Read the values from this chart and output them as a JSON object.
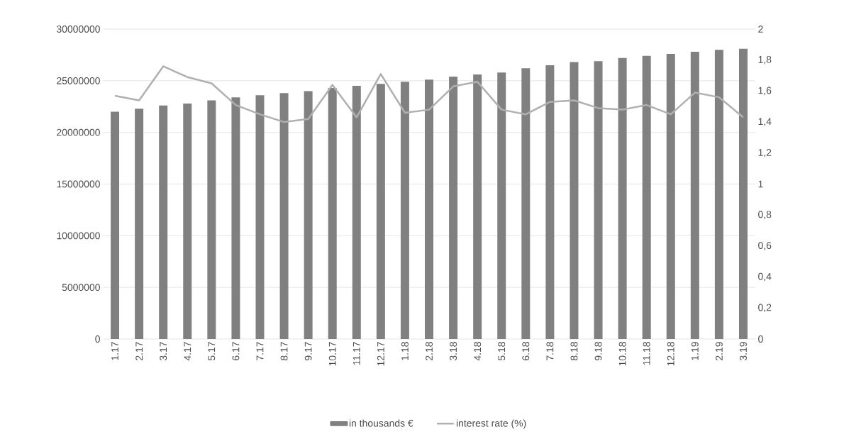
{
  "chart_data": {
    "type": "bar",
    "categories": [
      "1.17",
      "2.17",
      "3.17",
      "4.17",
      "5.17",
      "6.17",
      "7.17",
      "8.17",
      "9.17",
      "10.17",
      "11.17",
      "12.17",
      "1.18",
      "2.18",
      "3.18",
      "4.18",
      "5.18",
      "6.18",
      "7.18",
      "8.18",
      "9.18",
      "10.18",
      "11.18",
      "12.18",
      "1.19",
      "2.19",
      "3.19"
    ],
    "series": [
      {
        "name": "in thousands €",
        "color": "#808080",
        "values": [
          22000000,
          22300000,
          22600000,
          22800000,
          23100000,
          23400000,
          23600000,
          23800000,
          24000000,
          24300000,
          24500000,
          24700000,
          24900000,
          25100000,
          25400000,
          25600000,
          25800000,
          26200000,
          26500000,
          26800000,
          26900000,
          27200000,
          27400000,
          27600000,
          27800000,
          28000000,
          28100000
        ]
      },
      {
        "name": "interest rate  (%)",
        "type": "line",
        "axis": "y2",
        "color": "#b0b0b0",
        "values": [
          1.57,
          1.54,
          1.76,
          1.69,
          1.65,
          1.51,
          1.45,
          1.4,
          1.42,
          1.64,
          1.43,
          1.71,
          1.46,
          1.48,
          1.63,
          1.66,
          1.48,
          1.45,
          1.53,
          1.54,
          1.49,
          1.48,
          1.51,
          1.45,
          1.59,
          1.56,
          1.43
        ]
      }
    ],
    "ylim": [
      0,
      30000000
    ],
    "yticks": [
      0,
      5000000,
      10000000,
      15000000,
      20000000,
      25000000,
      30000000
    ],
    "y2lim": [
      0,
      2
    ],
    "y2ticks": [
      0,
      {
        "value": 0.2,
        "label": "0,2"
      },
      {
        "value": 0.4,
        "label": "0,4"
      },
      {
        "value": 0.6,
        "label": "0,6"
      },
      {
        "value": 0.8,
        "label": "0,8"
      },
      1,
      {
        "value": 1.2,
        "label": "1,2"
      },
      {
        "value": 1.4,
        "label": "1,4"
      },
      {
        "value": 1.6,
        "label": "1,6"
      },
      {
        "value": 1.8,
        "label": "1,8"
      },
      2
    ],
    "grid": "y",
    "legend": "bottom"
  }
}
